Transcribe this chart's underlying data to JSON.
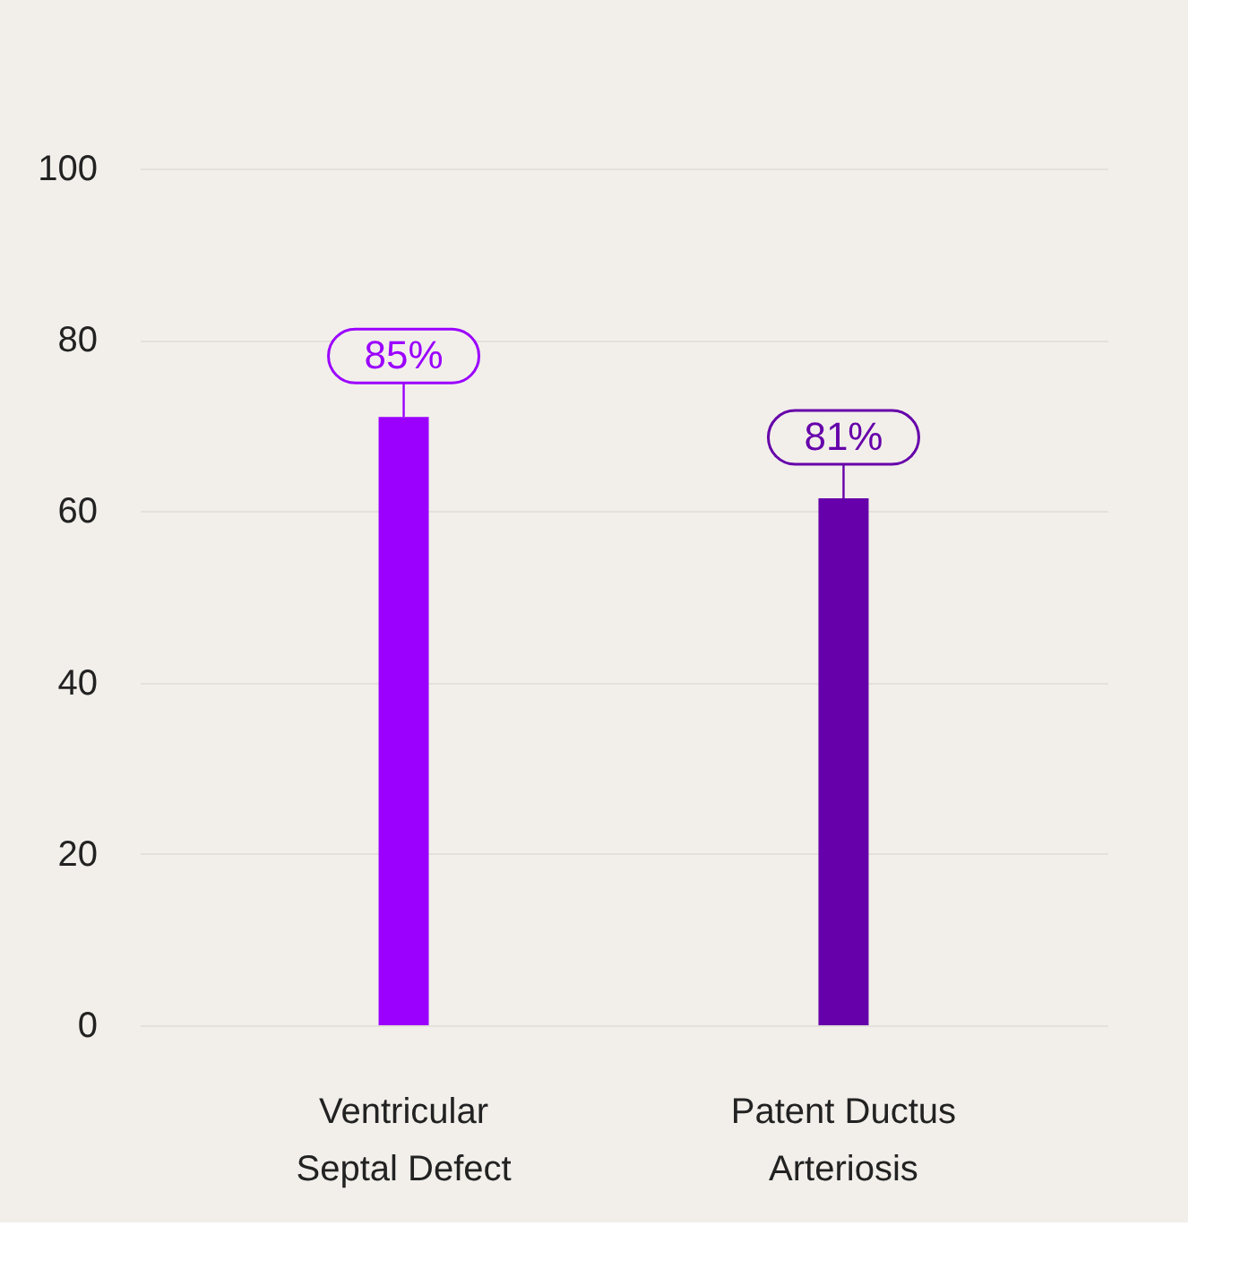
{
  "chart_data": {
    "type": "bar",
    "categories": [
      "Ventricular Septal Defect",
      "Patent Ductus Arteriosis"
    ],
    "values": [
      71,
      61.5
    ],
    "colors": [
      "#9b00ff",
      "#6600aa"
    ],
    "annotations": [
      {
        "text": "85%",
        "x": "Ventricular Septal Defect",
        "y": 71
      },
      {
        "text": "81%",
        "x": "Patent Ductus Arteriosis",
        "y": 61.5
      }
    ],
    "ylim": [
      0,
      100
    ],
    "yticks": [
      0,
      20,
      40,
      60,
      80,
      100
    ],
    "grid": "y",
    "legend": false
  }
}
